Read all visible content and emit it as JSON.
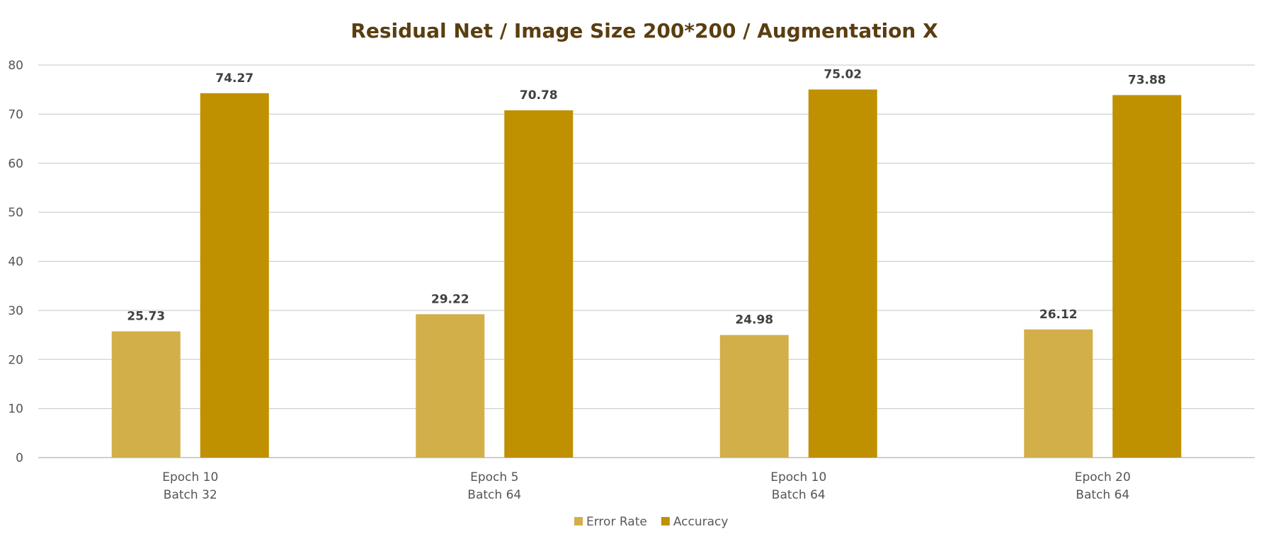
{
  "chart_data": {
    "type": "bar",
    "title": "Residual Net / Image Size 200*200 / Augmentation X",
    "xlabel": "",
    "ylabel": "",
    "categories": [
      [
        "Epoch 10",
        "Batch 32"
      ],
      [
        "Epoch 5",
        "Batch 64"
      ],
      [
        "Epoch 10",
        "Batch 64"
      ],
      [
        "Epoch 20",
        "Batch 64"
      ]
    ],
    "series": [
      {
        "name": "Error Rate",
        "color": "#d2af48",
        "values": [
          25.73,
          29.22,
          24.98,
          26.12
        ]
      },
      {
        "name": "Accuracy",
        "color": "#bf9000",
        "values": [
          74.27,
          70.78,
          75.02,
          73.88
        ]
      }
    ],
    "ylim": [
      0,
      80
    ],
    "yticks": [
      0,
      10,
      20,
      30,
      40,
      50,
      60,
      70,
      80
    ],
    "grid": true,
    "data_labels": true,
    "legend_position": "bottom"
  }
}
